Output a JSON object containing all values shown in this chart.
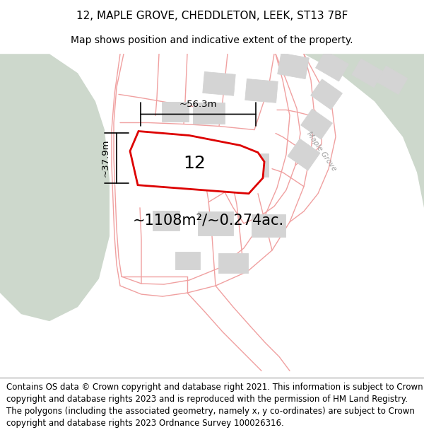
{
  "title": "12, MAPLE GROVE, CHEDDLETON, LEEK, ST13 7BF",
  "subtitle": "Map shows position and indicative extent of the property.",
  "footer": "Contains OS data © Crown copyright and database right 2021. This information is subject to Crown copyright and database rights 2023 and is reproduced with the permission of HM Land Registry. The polygons (including the associated geometry, namely x, y co-ordinates) are subject to Crown copyright and database rights 2023 Ordnance Survey 100026316.",
  "area_label": "~1108m²/~0.274ac.",
  "width_label": "~56.3m",
  "height_label": "~37.9m",
  "property_number": "12",
  "map_bg": "#f8f8f6",
  "green_bg_left": "#cdd8cc",
  "green_bg_right": "#cdd8cc",
  "road_color": "#f0a0a0",
  "plot_line_color": "#f0a0a0",
  "building_color": "#d4d4d4",
  "building_edge": "#d4d4d4",
  "property_outline_color": "#dd0000",
  "property_fill_color": "#ffffff",
  "title_fontsize": 11,
  "subtitle_fontsize": 10,
  "footer_fontsize": 8.5,
  "number_fontsize": 18,
  "area_fontsize": 15,
  "dim_fontsize": 9.5
}
